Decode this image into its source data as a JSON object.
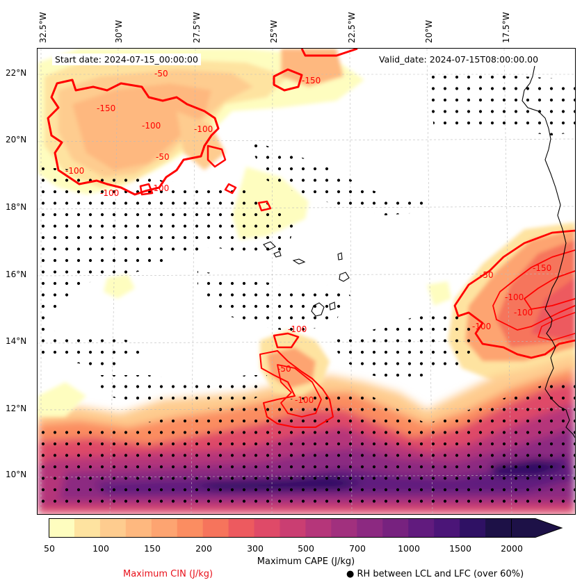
{
  "map": {
    "start_date": "Start date: 2024-07-15_00:00:00",
    "valid_date": "Valid_date: 2024-07-15T08:00:00.00",
    "lon_labels": [
      "32.5°W",
      "30°W",
      "27.5°W",
      "25°W",
      "22.5°W",
      "20°W",
      "17.5°W"
    ],
    "lat_labels": [
      "22°N",
      "20°N",
      "18°N",
      "16°N",
      "14°N",
      "12°N",
      "10°N"
    ],
    "cin_contour_labels": [
      "-150",
      "-100",
      "-50",
      "-100",
      "-100",
      "-150",
      "-100",
      "-50",
      "-100",
      "-100",
      "-50",
      "-100",
      "-50",
      "-100",
      "-150",
      "-100",
      "-100"
    ]
  },
  "colorbar": {
    "title": "Maximum CAPE (J/kg)",
    "ticks": [
      "50",
      "100",
      "150",
      "200",
      "300",
      "500",
      "700",
      "1000",
      "1500",
      "2000"
    ],
    "colors": [
      "#fefdbf",
      "#fee3a0",
      "#fecc8f",
      "#feb87f",
      "#fda471",
      "#fb8d61",
      "#f6745c",
      "#ed5a5f",
      "#df4a68",
      "#ca3e72",
      "#b5367a",
      "#a1307e",
      "#8c2981",
      "#77227f",
      "#611b7e",
      "#4b1578",
      "#2f1164",
      "#1d1147"
    ],
    "extend": "max"
  },
  "legend": {
    "cin_label": "Maximum CIN (J/kg)",
    "rh_label": "● RH between LCL and LFC (over 60%)"
  }
}
